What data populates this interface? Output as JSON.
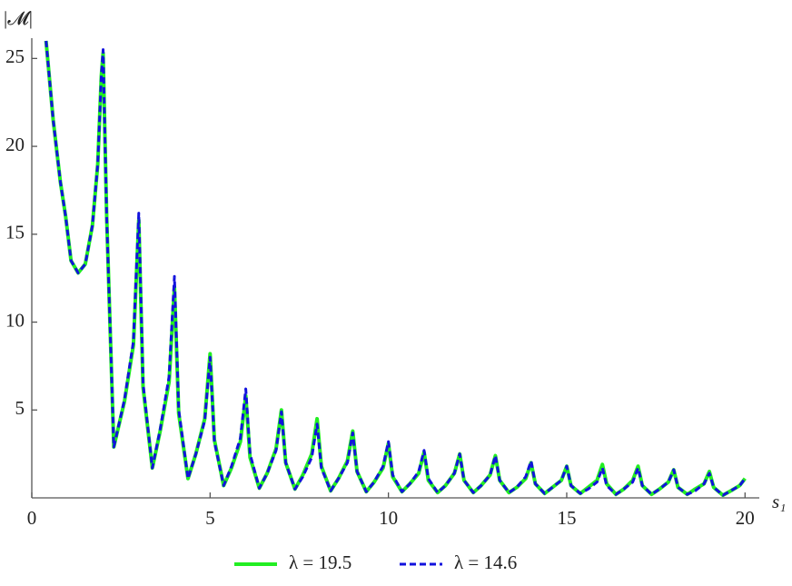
{
  "chart_data": {
    "type": "line",
    "y_label": "|𝓜|",
    "x_label": "s₁",
    "xlim": [
      0,
      20.4
    ],
    "xticks": [
      0,
      5,
      10,
      15,
      20
    ],
    "ylim": [
      0,
      26
    ],
    "yticks": [
      5,
      10,
      15,
      20,
      25
    ],
    "legend": "bottom",
    "x": [
      0.4,
      0.6,
      0.8,
      0.95,
      1.1,
      1.3,
      1.5,
      1.7,
      1.85,
      1.95,
      2.0,
      2.1,
      2.3,
      2.6,
      2.85,
      3,
      3.12,
      3.38,
      3.6,
      3.85,
      4,
      4.12,
      4.38,
      4.6,
      4.85,
      5,
      5.12,
      5.38,
      5.6,
      5.85,
      6,
      6.12,
      6.38,
      6.6,
      6.85,
      7,
      7.12,
      7.38,
      7.6,
      7.85,
      8,
      8.12,
      8.38,
      8.6,
      8.85,
      9,
      9.12,
      9.38,
      9.6,
      9.85,
      10,
      10.12,
      10.38,
      10.6,
      10.85,
      11,
      11.12,
      11.38,
      11.6,
      11.85,
      12,
      12.12,
      12.38,
      12.6,
      12.85,
      13,
      13.12,
      13.38,
      13.6,
      13.85,
      14,
      14.12,
      14.38,
      14.6,
      14.85,
      15,
      15.12,
      15.38,
      15.6,
      15.85,
      16,
      16.12,
      16.38,
      16.6,
      16.85,
      17,
      17.12,
      17.38,
      17.6,
      17.85,
      18,
      18.12,
      18.38,
      18.6,
      18.85,
      19,
      19.12,
      19.38,
      19.6,
      19.85,
      20
    ],
    "series": [
      {
        "name": "λ = 19.5",
        "color": "#22ee22",
        "style": "solid",
        "values": [
          26,
          21.5,
          18,
          16,
          13.5,
          12.8,
          13.3,
          15.5,
          19,
          24,
          25.3,
          16,
          2.9,
          5.5,
          8.7,
          15.8,
          6.3,
          1.7,
          3.8,
          6.6,
          12.0,
          4.8,
          1.1,
          2.5,
          4.5,
          8.2,
          3.3,
          0.7,
          1.7,
          3.2,
          5.8,
          2.3,
          0.55,
          1.4,
          2.8,
          5.0,
          2.0,
          0.5,
          1.3,
          2.5,
          4.5,
          1.8,
          0.4,
          1.1,
          2.1,
          3.8,
          1.5,
          0.35,
          0.9,
          1.7,
          3.1,
          1.2,
          0.35,
          0.8,
          1.4,
          2.6,
          1.0,
          0.3,
          0.7,
          1.4,
          2.5,
          1.0,
          0.3,
          0.7,
          1.3,
          2.4,
          1.0,
          0.3,
          0.6,
          1.1,
          2.0,
          0.8,
          0.25,
          0.6,
          1.0,
          1.8,
          0.7,
          0.25,
          0.6,
          1.0,
          1.9,
          0.8,
          0.2,
          0.5,
          1.0,
          1.8,
          0.7,
          0.2,
          0.5,
          0.9,
          1.6,
          0.6,
          0.2,
          0.5,
          0.8,
          1.5,
          0.6,
          0.15,
          0.4,
          0.7,
          1.1
        ]
      },
      {
        "name": "λ = 14.6",
        "color": "#1212dd",
        "style": "dashed",
        "values": [
          26,
          21.5,
          18,
          16,
          13.5,
          12.8,
          13.3,
          15.5,
          19,
          24,
          25.5,
          16,
          2.9,
          5.6,
          8.9,
          16.2,
          6.5,
          1.7,
          3.9,
          6.9,
          12.6,
          5.0,
          1.1,
          2.5,
          4.4,
          8.0,
          3.2,
          0.7,
          1.8,
          3.4,
          6.2,
          2.5,
          0.55,
          1.4,
          2.7,
          4.9,
          2.0,
          0.5,
          1.2,
          2.3,
          4.2,
          1.7,
          0.4,
          1.1,
          2.0,
          3.7,
          1.5,
          0.35,
          0.9,
          1.8,
          3.2,
          1.3,
          0.35,
          0.8,
          1.5,
          2.7,
          1.1,
          0.3,
          0.7,
          1.4,
          2.5,
          1.0,
          0.3,
          0.7,
          1.3,
          2.4,
          1.0,
          0.3,
          0.6,
          1.2,
          2.1,
          0.8,
          0.25,
          0.6,
          1.0,
          1.8,
          0.7,
          0.25,
          0.5,
          0.9,
          1.7,
          0.7,
          0.2,
          0.5,
          0.9,
          1.7,
          0.7,
          0.2,
          0.5,
          0.9,
          1.6,
          0.6,
          0.2,
          0.4,
          0.8,
          1.4,
          0.6,
          0.15,
          0.4,
          0.7,
          1.1
        ]
      }
    ]
  }
}
